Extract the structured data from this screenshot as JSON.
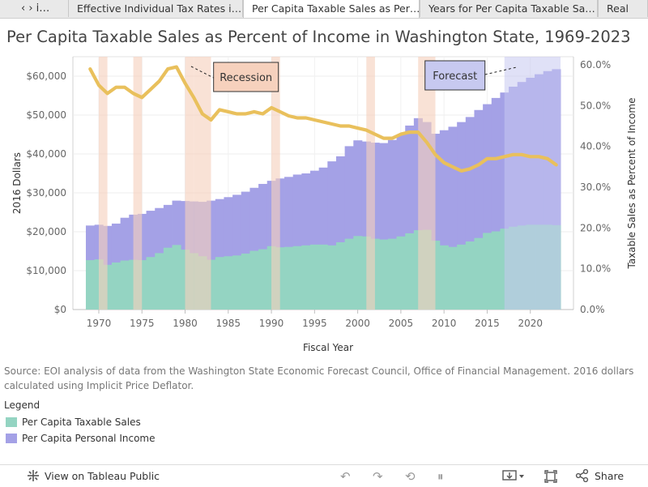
{
  "tabs": {
    "nav_label": "‹ › i…",
    "items": [
      {
        "label": "Effective Individual Tax Rates i…"
      },
      {
        "label": "Per Capita Taxable Sales as Per…"
      },
      {
        "label": "Years for Per Capita Taxable Sa…"
      },
      {
        "label": "Real"
      }
    ]
  },
  "chart_data": {
    "type": "area",
    "title": "Per Capita Taxable Sales as Percent of Income in Washington State, 1969-2023",
    "xlabel": "Fiscal Year",
    "ylabel": "2016 Dollars",
    "y2label": "Taxable Sales as Percent of Income",
    "xlim": [
      1967,
      2025
    ],
    "ylim": [
      0,
      65000
    ],
    "y2lim": [
      0,
      0.62
    ],
    "x_ticks": [
      1970,
      1975,
      1980,
      1985,
      1990,
      1995,
      2000,
      2005,
      2010,
      2015,
      2020
    ],
    "y_ticks": [
      0,
      10000,
      20000,
      30000,
      40000,
      50000,
      60000
    ],
    "y_tick_labels": [
      "$0",
      "$10,000",
      "$20,000",
      "$30,000",
      "$40,000",
      "$50,000",
      "$60,000"
    ],
    "y2_ticks": [
      0,
      0.1,
      0.2,
      0.3,
      0.4,
      0.5,
      0.6
    ],
    "y2_tick_labels": [
      "0.0%",
      "10.0%",
      "20.0%",
      "30.0%",
      "40.0%",
      "50.0%",
      "60.0%"
    ],
    "x": [
      1969,
      1970,
      1971,
      1972,
      1973,
      1974,
      1975,
      1976,
      1977,
      1978,
      1979,
      1980,
      1981,
      1982,
      1983,
      1984,
      1985,
      1986,
      1987,
      1988,
      1989,
      1990,
      1991,
      1992,
      1993,
      1994,
      1995,
      1996,
      1997,
      1998,
      1999,
      2000,
      2001,
      2002,
      2003,
      2004,
      2005,
      2006,
      2007,
      2008,
      2009,
      2010,
      2011,
      2012,
      2013,
      2014,
      2015,
      2016,
      2017,
      2018,
      2019,
      2020,
      2021,
      2022,
      2023
    ],
    "series": [
      {
        "name": "Per Capita Personal Income",
        "color": "#a4a1e6",
        "values": [
          21600,
          21800,
          21500,
          22100,
          23600,
          24400,
          24600,
          25400,
          26100,
          26900,
          28000,
          27900,
          27800,
          27700,
          28000,
          28400,
          28900,
          29500,
          30300,
          31300,
          32300,
          33100,
          33700,
          34100,
          34700,
          35000,
          35700,
          36500,
          38100,
          39400,
          42000,
          43500,
          43200,
          42900,
          42800,
          43600,
          45000,
          47300,
          49200,
          48200,
          45200,
          46100,
          47000,
          48200,
          49500,
          51300,
          52800,
          54400,
          55800,
          57300,
          58500,
          59600,
          60500,
          61300,
          61800
        ]
      },
      {
        "name": "Per Capita Taxable Sales",
        "color": "#94d4c2",
        "values": [
          12700,
          12900,
          11500,
          12100,
          12600,
          12800,
          12700,
          13500,
          14500,
          15900,
          16600,
          15400,
          14500,
          13700,
          12800,
          13500,
          13700,
          13900,
          14400,
          15100,
          15500,
          16300,
          16000,
          16100,
          16300,
          16500,
          16700,
          16700,
          16500,
          17300,
          18200,
          18900,
          18800,
          18200,
          18000,
          18200,
          18800,
          19600,
          20400,
          20500,
          17700,
          16500,
          16100,
          16700,
          17500,
          18400,
          19700,
          20100,
          20800,
          21300,
          21600,
          21800,
          21800,
          21800,
          21700
        ]
      }
    ],
    "ratio_series": {
      "color": "#e9c05c",
      "values": [
        0.59,
        0.55,
        0.53,
        0.545,
        0.545,
        0.53,
        0.52,
        0.54,
        0.56,
        0.59,
        0.595,
        0.555,
        0.52,
        0.48,
        0.465,
        0.49,
        0.485,
        0.48,
        0.48,
        0.485,
        0.48,
        0.495,
        0.485,
        0.475,
        0.47,
        0.47,
        0.465,
        0.46,
        0.455,
        0.45,
        0.45,
        0.445,
        0.44,
        0.43,
        0.42,
        0.42,
        0.43,
        0.435,
        0.435,
        0.41,
        0.38,
        0.36,
        0.35,
        0.34,
        0.345,
        0.355,
        0.37,
        0.37,
        0.375,
        0.38,
        0.38,
        0.375,
        0.375,
        0.37,
        0.355
      ]
    },
    "recessions": [
      [
        1970,
        1971
      ],
      [
        1974,
        1975
      ],
      [
        1980,
        1981
      ],
      [
        1981,
        1983
      ],
      [
        1990,
        1991
      ],
      [
        2001,
        2002
      ],
      [
        2007,
        2009
      ]
    ],
    "forecast": [
      2017,
      2023.5
    ],
    "annotations": {
      "recession": "Recession",
      "forecast": "Forecast"
    },
    "colors": {
      "recession": "#f6d1bd",
      "forecast": "#c7c9f0",
      "ratio": "#e9c05c"
    }
  },
  "source_text": "Source: EOI analysis of data from the Washington State Economic Forecast Council, Office of Financial Management. 2016 dollars calculated using Implicit Price Deflator.",
  "legend": {
    "title": "Legend",
    "items": [
      {
        "label": "Per Capita Taxable Sales",
        "color": "#94d4c2"
      },
      {
        "label": "Per Capita Personal Income",
        "color": "#a4a1e6"
      }
    ]
  },
  "footer": {
    "view_label": "View on Tableau Public",
    "share_label": "Share",
    "icons": [
      "undo-icon",
      "redo-icon",
      "revert-icon",
      "pause-icon",
      "download-icon",
      "fullscreen-icon",
      "share-icon"
    ]
  }
}
